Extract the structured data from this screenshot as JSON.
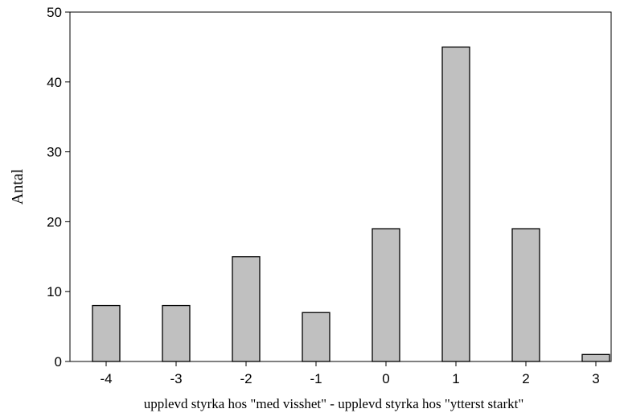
{
  "chart_data": {
    "type": "bar",
    "categories": [
      "-4",
      "-3",
      "-2",
      "-1",
      "0",
      "1",
      "2",
      "3"
    ],
    "x": [
      -4,
      -3,
      -2,
      -1,
      0,
      1,
      2,
      3
    ],
    "values": [
      8,
      8,
      15,
      7,
      19,
      45,
      19,
      1
    ],
    "xlabel": "upplevd styrka hos \"med visshet\" - upplevd styrka hos \"ytterst starkt\"",
    "ylabel": "Antal",
    "ylim": [
      0,
      50
    ],
    "yticks": [
      0,
      10,
      20,
      30,
      40,
      50
    ],
    "grid": false,
    "legend": "none",
    "colors": {
      "bar_fill": "#c0c0c0",
      "bar_stroke": "#000000",
      "axis": "#000000"
    }
  }
}
